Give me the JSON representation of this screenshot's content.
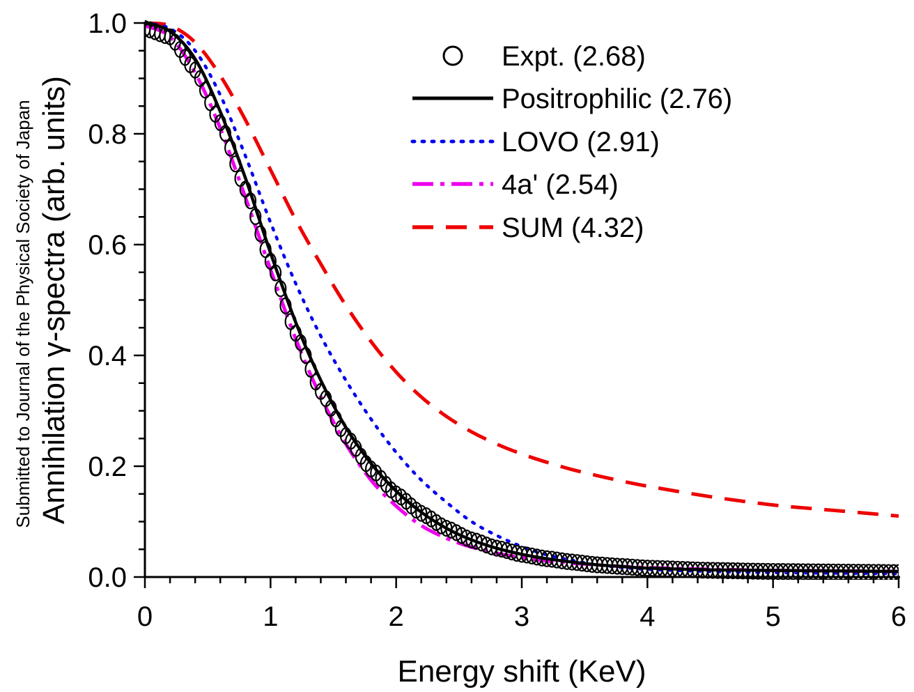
{
  "chart_data": {
    "type": "line",
    "xlabel": "Energy shift (KeV)",
    "ylabel": "Annihilation γ-spectra (arb. units)",
    "side_text": "Submitted to Journal of the Physical Society of Japan",
    "xlim": [
      0,
      6
    ],
    "ylim": [
      0,
      1.0
    ],
    "xticks": [
      "0",
      "1",
      "2",
      "3",
      "4",
      "5",
      "6"
    ],
    "yticks": [
      "0.0",
      "0.2",
      "0.4",
      "0.6",
      "0.8",
      "1.0"
    ],
    "grid": false,
    "legend_position": "top-right",
    "x": [
      0,
      0.2,
      0.4,
      0.6,
      0.8,
      1.0,
      1.2,
      1.4,
      1.6,
      1.8,
      2.0,
      2.2,
      2.4,
      2.6,
      2.8,
      3.0,
      3.2,
      3.4,
      3.6,
      3.8,
      4.0,
      4.5,
      5.0,
      5.5,
      6.0
    ],
    "series": [
      {
        "name": "Expt. (2.68)",
        "style": "circles",
        "color": "#000000",
        "values": [
          0.99,
          0.975,
          0.915,
          0.82,
          0.7,
          0.57,
          0.44,
          0.335,
          0.255,
          0.195,
          0.15,
          0.115,
          0.088,
          0.067,
          0.052,
          0.041,
          0.033,
          0.027,
          0.022,
          0.019,
          0.016,
          0.012,
          0.01,
          0.009,
          0.008
        ]
      },
      {
        "name": "Positrophilic (2.76)",
        "style": "solid",
        "color": "#000000",
        "values": [
          1.0,
          0.985,
          0.935,
          0.84,
          0.72,
          0.585,
          0.46,
          0.355,
          0.27,
          0.205,
          0.155,
          0.117,
          0.088,
          0.067,
          0.052,
          0.041,
          0.033,
          0.027,
          0.022,
          0.019,
          0.016,
          0.013,
          0.012,
          0.011,
          0.01
        ]
      },
      {
        "name": "LOVO (2.91)",
        "style": "dotted",
        "color": "#0000ee",
        "values": [
          1.0,
          0.99,
          0.95,
          0.87,
          0.76,
          0.64,
          0.53,
          0.435,
          0.355,
          0.285,
          0.225,
          0.175,
          0.135,
          0.1,
          0.075,
          0.055,
          0.04,
          0.03,
          0.022,
          0.017,
          0.014,
          0.01,
          0.008,
          0.007,
          0.006
        ]
      },
      {
        "name": "4a' (2.54)",
        "style": "dashdot",
        "color": "#ee00ee",
        "values": [
          0.995,
          0.975,
          0.91,
          0.81,
          0.685,
          0.555,
          0.43,
          0.325,
          0.24,
          0.175,
          0.128,
          0.093,
          0.07,
          0.054,
          0.043,
          0.035,
          0.029,
          0.025,
          0.022,
          0.019,
          0.017,
          0.014,
          0.012,
          0.011,
          0.01
        ]
      },
      {
        "name": "SUM (4.32)",
        "style": "dashed",
        "color": "#ee0000",
        "values": [
          1.0,
          0.995,
          0.965,
          0.905,
          0.825,
          0.735,
          0.645,
          0.565,
          0.49,
          0.425,
          0.37,
          0.325,
          0.29,
          0.262,
          0.24,
          0.222,
          0.207,
          0.194,
          0.183,
          0.173,
          0.164,
          0.145,
          0.13,
          0.12,
          0.11
        ]
      }
    ]
  }
}
